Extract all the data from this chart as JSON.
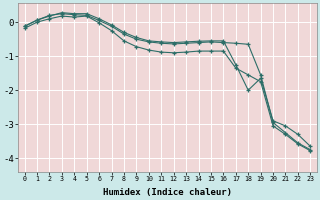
{
  "xlabel": "Humidex (Indice chaleur)",
  "background_color": "#cce9e9",
  "plot_bg_color": "#f0d8d8",
  "grid_color": "#ffffff",
  "line_color": "#2d6e68",
  "xlim": [
    -0.5,
    23.5
  ],
  "ylim": [
    -4.4,
    0.55
  ],
  "yticks": [
    0,
    -1,
    -2,
    -3,
    -4
  ],
  "xticks": [
    0,
    1,
    2,
    3,
    4,
    5,
    6,
    7,
    8,
    9,
    10,
    11,
    12,
    13,
    14,
    15,
    16,
    17,
    18,
    19,
    20,
    21,
    22,
    23
  ],
  "line1_x": [
    0,
    1,
    2,
    3,
    4,
    5,
    6,
    7,
    8,
    9,
    10,
    11,
    12,
    13,
    14,
    15,
    16,
    17,
    18,
    19,
    20,
    21,
    22,
    23
  ],
  "line1_y": [
    -0.12,
    0.06,
    0.2,
    0.25,
    0.22,
    0.2,
    0.05,
    -0.12,
    -0.35,
    -0.5,
    -0.58,
    -0.62,
    -0.64,
    -0.62,
    -0.6,
    -0.58,
    -0.6,
    -0.62,
    -0.65,
    -1.55,
    -2.95,
    -3.25,
    -3.55,
    -3.75
  ],
  "line2_x": [
    0,
    1,
    2,
    3,
    4,
    5,
    6,
    7,
    8,
    9,
    10,
    11,
    12,
    13,
    14,
    15,
    16,
    17,
    18,
    19,
    20,
    21,
    22,
    23
  ],
  "line2_y": [
    -0.12,
    0.06,
    0.18,
    0.28,
    0.25,
    0.25,
    0.1,
    -0.08,
    -0.3,
    -0.45,
    -0.55,
    -0.58,
    -0.6,
    -0.58,
    -0.56,
    -0.55,
    -0.55,
    -1.25,
    -2.0,
    -1.65,
    -2.9,
    -3.05,
    -3.3,
    -3.65
  ],
  "line3_x": [
    0,
    1,
    2,
    3,
    4,
    5,
    6,
    7,
    8,
    9,
    10,
    11,
    12,
    13,
    14,
    15,
    16,
    17,
    18,
    19,
    20,
    21,
    22,
    23
  ],
  "line3_y": [
    -0.18,
    0.0,
    0.1,
    0.18,
    0.15,
    0.18,
    -0.02,
    -0.25,
    -0.55,
    -0.72,
    -0.82,
    -0.88,
    -0.9,
    -0.88,
    -0.85,
    -0.85,
    -0.85,
    -1.35,
    -1.55,
    -1.75,
    -3.05,
    -3.3,
    -3.58,
    -3.78
  ]
}
